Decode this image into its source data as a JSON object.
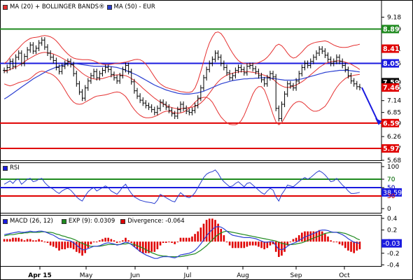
{
  "chart_data": {
    "type": "line",
    "x_ticks": [
      "Apr 15",
      "May",
      "Jun",
      "Jul",
      "Aug",
      "Sep",
      "Oct"
    ],
    "price_panel": {
      "legend": [
        {
          "label": "MA (20) + BOLLINGER BANDS®",
          "color": "#e53030"
        },
        {
          "label": "MA (50) - EUR",
          "color": "#2b3fd1"
        }
      ],
      "y_ticks": [
        9.18,
        8.89,
        8.41,
        8.05,
        7.59,
        7.46,
        7.14,
        6.85,
        6.59,
        6.26,
        5.97,
        5.68
      ],
      "ylim": [
        5.68,
        9.6
      ],
      "levels": [
        {
          "value": 8.89,
          "label": "8.89",
          "color": "#1f8a1f"
        },
        {
          "value": 8.41,
          "label": "8.41",
          "color": "#e00000"
        },
        {
          "value": 8.05,
          "label": "8.05",
          "color": "#1a1adf"
        },
        {
          "value": 7.59,
          "label": "7.59",
          "color": "#000000"
        },
        {
          "value": 7.46,
          "label": "7.46",
          "color": "#e00000"
        },
        {
          "value": 6.59,
          "label": "6.59",
          "color": "#e00000"
        },
        {
          "value": 5.97,
          "label": "5.97",
          "color": "#e00000"
        }
      ],
      "horizontal_lines": [
        {
          "value": 8.89,
          "color": "#1f8a1f"
        },
        {
          "value": 8.05,
          "color": "#1a1adf"
        },
        {
          "value": 6.59,
          "color": "#e00000"
        },
        {
          "value": 5.97,
          "color": "#e00000"
        }
      ],
      "forecast_arrow": {
        "from_value": 7.46,
        "to_value": 6.59,
        "color": "#1a1adf"
      },
      "close": [
        7.88,
        7.95,
        8.1,
        7.98,
        8.2,
        8.3,
        8.05,
        8.22,
        8.38,
        8.5,
        8.35,
        8.42,
        8.55,
        8.62,
        8.45,
        8.3,
        8.2,
        8.12,
        7.95,
        7.85,
        7.98,
        8.05,
        8.1,
        8.02,
        7.8,
        7.55,
        7.35,
        7.2,
        7.45,
        7.62,
        7.75,
        7.85,
        7.7,
        7.8,
        7.88,
        7.95,
        7.9,
        7.78,
        7.7,
        7.62,
        7.75,
        7.9,
        8.0,
        7.85,
        7.6,
        7.38,
        7.25,
        7.15,
        7.08,
        7.02,
        6.98,
        6.92,
        6.85,
        6.95,
        7.1,
        7.05,
        6.98,
        6.9,
        6.82,
        6.76,
        6.92,
        7.05,
        6.95,
        6.88,
        6.85,
        6.9,
        7.02,
        7.2,
        7.45,
        7.7,
        7.9,
        8.05,
        8.15,
        8.3,
        8.2,
        8.05,
        7.95,
        7.82,
        7.7,
        7.75,
        7.88,
        7.95,
        7.9,
        7.82,
        7.98,
        8.0,
        7.92,
        7.85,
        7.75,
        7.65,
        7.55,
        7.7,
        7.8,
        7.72,
        6.95,
        6.7,
        7.05,
        7.3,
        7.55,
        7.5,
        7.45,
        7.62,
        7.8,
        7.95,
        8.05,
        8.0,
        8.1,
        8.2,
        8.3,
        8.4,
        8.35,
        8.25,
        8.15,
        8.05,
        8.1,
        8.2,
        8.1,
        8.0,
        7.9,
        7.75,
        7.62,
        7.55,
        7.48,
        7.46
      ],
      "ma20": [
        7.85,
        7.87,
        7.9,
        7.93,
        7.96,
        8.0,
        8.04,
        8.09,
        8.14,
        8.18,
        8.22,
        8.26,
        8.29,
        8.31,
        8.32,
        8.31,
        8.3,
        8.28,
        8.25,
        8.22,
        8.18,
        8.14,
        8.1,
        8.05,
        7.99,
        7.93,
        7.87,
        7.81,
        7.76,
        7.72,
        7.69,
        7.67,
        7.66,
        7.67,
        7.68,
        7.7,
        7.72,
        7.74,
        7.76,
        7.77,
        7.77,
        7.76,
        7.75,
        7.72,
        7.68,
        7.63,
        7.57,
        7.51,
        7.44,
        7.38,
        7.32,
        7.26,
        7.2,
        7.15,
        7.1,
        7.06,
        7.02,
        6.99,
        6.97,
        6.95,
        6.94,
        6.94,
        6.95,
        6.96,
        6.97,
        6.98,
        7.0,
        7.03,
        7.08,
        7.15,
        7.23,
        7.32,
        7.42,
        7.52,
        7.6,
        7.67,
        7.72,
        7.76,
        7.79,
        7.81,
        7.83,
        7.84,
        7.85,
        7.85,
        7.85,
        7.84,
        7.83,
        7.82,
        7.8,
        7.78,
        7.76,
        7.73,
        7.7,
        7.66,
        7.6,
        7.54,
        7.5,
        7.47,
        7.46,
        7.47,
        7.49,
        7.52,
        7.56,
        7.6,
        7.65,
        7.71,
        7.77,
        7.83,
        7.89,
        7.95,
        8.0,
        8.04,
        8.07,
        8.09,
        8.1,
        8.11,
        8.11,
        8.1,
        8.08,
        8.06,
        8.03,
        7.99,
        7.95,
        7.9
      ],
      "boll_upper": [
        8.05,
        8.1,
        8.2,
        8.28,
        8.35,
        8.42,
        8.5,
        8.57,
        8.62,
        8.66,
        8.68,
        8.69,
        8.7,
        8.72,
        8.73,
        8.72,
        8.7,
        8.66,
        8.6,
        8.52,
        8.43,
        8.35,
        8.28,
        8.22,
        8.18,
        8.16,
        8.15,
        8.14,
        8.14,
        8.14,
        8.13,
        8.11,
        8.08,
        8.05,
        8.03,
        8.02,
        8.02,
        8.03,
        8.04,
        8.05,
        8.06,
        8.07,
        8.08,
        8.1,
        8.12,
        8.14,
        8.15,
        8.14,
        8.1,
        8.03,
        7.94,
        7.83,
        7.72,
        7.62,
        7.55,
        7.5,
        7.46,
        7.44,
        7.42,
        7.4,
        7.38,
        7.36,
        7.35,
        7.34,
        7.34,
        7.36,
        7.45,
        7.62,
        7.85,
        8.1,
        8.35,
        8.55,
        8.7,
        8.8,
        8.82,
        8.78,
        8.68,
        8.55,
        8.42,
        8.3,
        8.2,
        8.12,
        8.07,
        8.05,
        8.04,
        8.04,
        8.04,
        8.05,
        8.07,
        8.1,
        8.14,
        8.2,
        8.28,
        8.38,
        8.48,
        8.52,
        8.48,
        8.4,
        8.3,
        8.22,
        8.18,
        8.2,
        8.26,
        8.33,
        8.41,
        8.48,
        8.52,
        8.55,
        8.57,
        8.58,
        8.59,
        8.6,
        8.58,
        8.54,
        8.5,
        8.47,
        8.45,
        8.44,
        8.44,
        8.45,
        8.47,
        8.49,
        8.5,
        8.52
      ],
      "boll_lower": [
        7.55,
        7.52,
        7.5,
        7.52,
        7.55,
        7.58,
        7.6,
        7.62,
        7.64,
        7.68,
        7.74,
        7.8,
        7.84,
        7.86,
        7.85,
        7.82,
        7.8,
        7.76,
        7.7,
        7.62,
        7.52,
        7.4,
        7.28,
        7.18,
        7.1,
        7.06,
        7.05,
        7.06,
        7.1,
        7.14,
        7.18,
        7.22,
        7.25,
        7.26,
        7.27,
        7.28,
        7.3,
        7.32,
        7.34,
        7.35,
        7.34,
        7.3,
        7.24,
        7.14,
        7.02,
        6.92,
        6.84,
        6.78,
        6.74,
        6.72,
        6.72,
        6.73,
        6.75,
        6.78,
        6.82,
        6.86,
        6.88,
        6.88,
        6.86,
        6.84,
        6.83,
        6.84,
        6.86,
        6.9,
        6.96,
        7.02,
        7.1,
        7.16,
        7.2,
        7.22,
        7.22,
        7.18,
        7.1,
        6.98,
        6.85,
        6.74,
        6.66,
        6.6,
        6.56,
        6.55,
        6.55,
        6.58,
        6.65,
        6.78,
        6.95,
        7.12,
        7.3,
        7.42,
        7.48,
        7.48,
        7.4,
        7.22,
        7.02,
        6.8,
        6.62,
        6.55,
        6.6,
        6.72,
        6.85,
        6.96,
        7.05,
        7.1,
        7.12,
        7.1,
        7.05,
        6.98,
        6.92,
        6.88,
        6.88,
        6.9,
        6.95,
        7.0,
        7.1,
        7.22,
        7.35,
        7.46,
        7.55,
        7.62,
        7.68,
        7.72,
        7.74,
        7.76,
        7.77,
        7.78
      ],
      "ma50": [
        7.18,
        7.22,
        7.27,
        7.32,
        7.37,
        7.42,
        7.47,
        7.52,
        7.57,
        7.62,
        7.67,
        7.71,
        7.75,
        7.79,
        7.83,
        7.87,
        7.9,
        7.93,
        7.96,
        7.98,
        8.0,
        8.02,
        8.03,
        8.04,
        8.04,
        8.04,
        8.03,
        8.02,
        8.01,
        8.0,
        7.99,
        7.98,
        7.98,
        7.98,
        7.98,
        7.98,
        7.98,
        7.97,
        7.96,
        7.95,
        7.93,
        7.91,
        7.88,
        7.85,
        7.82,
        7.79,
        7.76,
        7.72,
        7.68,
        7.64,
        7.6,
        7.56,
        7.52,
        7.49,
        7.46,
        7.43,
        7.4,
        7.38,
        7.36,
        7.34,
        7.32,
        7.31,
        7.3,
        7.3,
        7.3,
        7.31,
        7.32,
        7.33,
        7.35,
        7.37,
        7.4,
        7.43,
        7.46,
        7.49,
        7.52,
        7.55,
        7.57,
        7.59,
        7.61,
        7.63,
        7.64,
        7.65,
        7.66,
        7.67,
        7.67,
        7.68,
        7.68,
        7.69,
        7.69,
        7.7,
        7.7,
        7.7,
        7.69,
        7.68,
        7.67,
        7.66,
        7.65,
        7.64,
        7.64,
        7.64,
        7.64,
        7.65,
        7.66,
        7.67,
        7.69,
        7.71,
        7.73,
        7.75,
        7.77,
        7.79,
        7.81,
        7.83,
        7.84,
        7.85,
        7.86,
        7.87,
        7.88,
        7.88,
        7.88,
        7.88,
        7.87,
        7.86,
        7.85,
        7.84
      ]
    },
    "rsi_panel": {
      "legend": [
        {
          "label": "RSI",
          "color": "#1a1adf"
        }
      ],
      "y_ticks": [
        100,
        70,
        50,
        30,
        0
      ],
      "ylim": [
        -10,
        110
      ],
      "levels": [
        {
          "value": 70,
          "label": "70",
          "color": "#1f8a1f"
        },
        {
          "value": 50,
          "label": "50",
          "color": "#1a1adf"
        },
        {
          "value": 30,
          "label": "30",
          "color": "#e00000"
        }
      ],
      "current": {
        "value": 38.59,
        "label": "38.59",
        "color": "#1a1adf"
      },
      "values": [
        58,
        62,
        66,
        60,
        68,
        70,
        58,
        64,
        70,
        72,
        64,
        66,
        70,
        72,
        62,
        55,
        50,
        46,
        40,
        36,
        42,
        46,
        48,
        44,
        36,
        28,
        22,
        18,
        30,
        40,
        46,
        50,
        42,
        46,
        50,
        54,
        50,
        42,
        38,
        34,
        42,
        52,
        58,
        46,
        36,
        28,
        24,
        20,
        18,
        16,
        15,
        14,
        12,
        20,
        34,
        30,
        26,
        22,
        18,
        16,
        28,
        38,
        32,
        28,
        26,
        30,
        38,
        50,
        62,
        74,
        82,
        86,
        88,
        92,
        84,
        72,
        64,
        58,
        52,
        54,
        60,
        64,
        58,
        52,
        60,
        62,
        56,
        50,
        44,
        38,
        34,
        42,
        48,
        44,
        28,
        18,
        34,
        44,
        56,
        54,
        52,
        58,
        64,
        70,
        74,
        70,
        74,
        80,
        86,
        90,
        86,
        80,
        72,
        64,
        66,
        72,
        64,
        56,
        50,
        42,
        36,
        36,
        37,
        38.59
      ]
    },
    "macd_panel": {
      "legend": [
        {
          "label": "MACD (26, 12)",
          "color": "#1a1adf"
        },
        {
          "label": "EXP (9): 0.0309",
          "color": "#1f8a1f"
        },
        {
          "label": "Divergence: -0.064",
          "color": "#e00000"
        }
      ],
      "y_ticks": [
        0.4,
        0.2,
        0,
        -0.2,
        -0.4
      ],
      "ylim": [
        -0.42,
        0.46
      ],
      "current": {
        "value": -0.03,
        "label": "-0.03",
        "color": "#1a1adf"
      },
      "macd": [
        0.12,
        0.13,
        0.14,
        0.15,
        0.16,
        0.17,
        0.16,
        0.16,
        0.17,
        0.18,
        0.17,
        0.17,
        0.18,
        0.18,
        0.17,
        0.15,
        0.13,
        0.11,
        0.08,
        0.05,
        0.04,
        0.03,
        0.02,
        0.01,
        -0.02,
        -0.06,
        -0.1,
        -0.14,
        -0.14,
        -0.12,
        -0.1,
        -0.08,
        -0.08,
        -0.07,
        -0.05,
        -0.03,
        -0.02,
        -0.03,
        -0.04,
        -0.06,
        -0.05,
        -0.03,
        -0.01,
        -0.02,
        -0.05,
        -0.09,
        -0.13,
        -0.17,
        -0.2,
        -0.23,
        -0.25,
        -0.27,
        -0.29,
        -0.29,
        -0.27,
        -0.26,
        -0.26,
        -0.26,
        -0.27,
        -0.28,
        -0.26,
        -0.23,
        -0.22,
        -0.21,
        -0.2,
        -0.18,
        -0.15,
        -0.1,
        -0.04,
        0.03,
        0.1,
        0.16,
        0.21,
        0.25,
        0.26,
        0.25,
        0.22,
        0.18,
        0.14,
        0.11,
        0.1,
        0.09,
        0.08,
        0.07,
        0.07,
        0.07,
        0.06,
        0.05,
        0.03,
        0.01,
        -0.01,
        -0.01,
        0.0,
        0.0,
        -0.07,
        -0.13,
        -0.14,
        -0.12,
        -0.08,
        -0.05,
        -0.03,
        -0.01,
        0.02,
        0.05,
        0.08,
        0.1,
        0.12,
        0.14,
        0.16,
        0.19,
        0.2,
        0.2,
        0.19,
        0.17,
        0.16,
        0.16,
        0.14,
        0.12,
        0.09,
        0.05,
        0.02,
        -0.01,
        -0.02,
        -0.03
      ],
      "signal": [
        0.1,
        0.11,
        0.12,
        0.12,
        0.13,
        0.14,
        0.14,
        0.15,
        0.15,
        0.16,
        0.16,
        0.16,
        0.16,
        0.17,
        0.17,
        0.16,
        0.16,
        0.15,
        0.13,
        0.12,
        0.1,
        0.09,
        0.07,
        0.06,
        0.04,
        0.02,
        -0.01,
        -0.03,
        -0.05,
        -0.07,
        -0.08,
        -0.08,
        -0.08,
        -0.08,
        -0.07,
        -0.06,
        -0.05,
        -0.05,
        -0.05,
        -0.05,
        -0.05,
        -0.04,
        -0.04,
        -0.03,
        -0.04,
        -0.05,
        -0.07,
        -0.09,
        -0.11,
        -0.14,
        -0.16,
        -0.19,
        -0.21,
        -0.23,
        -0.24,
        -0.25,
        -0.25,
        -0.26,
        -0.26,
        -0.26,
        -0.26,
        -0.26,
        -0.25,
        -0.24,
        -0.23,
        -0.22,
        -0.21,
        -0.18,
        -0.15,
        -0.11,
        -0.07,
        -0.02,
        0.03,
        0.08,
        0.12,
        0.15,
        0.17,
        0.18,
        0.17,
        0.16,
        0.15,
        0.14,
        0.13,
        0.12,
        0.11,
        0.1,
        0.09,
        0.08,
        0.07,
        0.06,
        0.05,
        0.04,
        0.03,
        0.02,
        0.01,
        -0.01,
        -0.03,
        -0.04,
        -0.05,
        -0.05,
        -0.05,
        -0.04,
        -0.03,
        -0.02,
        0.0,
        0.02,
        0.04,
        0.06,
        0.08,
        0.1,
        0.12,
        0.14,
        0.15,
        0.16,
        0.16,
        0.16,
        0.16,
        0.15,
        0.14,
        0.12,
        0.1,
        0.08,
        0.05,
        0.03
      ]
    }
  }
}
